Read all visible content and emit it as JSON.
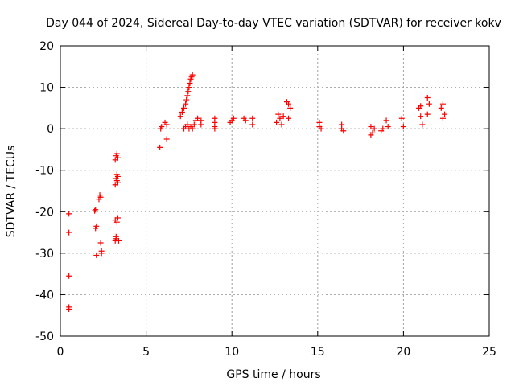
{
  "chart_data": {
    "type": "scatter",
    "title": "Day 044 of 2024, Sidereal Day-to-day VTEC variation (SDTVAR) for receiver kokv",
    "xlabel": "GPS time / hours",
    "ylabel": "SDTVAR / TECUs",
    "xlim": [
      0,
      25
    ],
    "ylim": [
      -50,
      20
    ],
    "grid": true,
    "marker": "plus",
    "color": "#ff0000",
    "x_ticks": [
      "0",
      "5",
      "10",
      "15",
      "20",
      "25"
    ],
    "y_ticks": [
      "-50",
      "-40",
      "-30",
      "-20",
      "-10",
      "0",
      "10",
      "20"
    ],
    "series": [
      {
        "name": "SDTVAR",
        "x": [
          0.5,
          0.5,
          0.5,
          0.5,
          0.5,
          2.0,
          2.05,
          2.1,
          2.3,
          2.35,
          2.4,
          2.05,
          2.1,
          2.25,
          2.35,
          2.4,
          3.2,
          3.25,
          3.3,
          3.35,
          3.2,
          3.25,
          3.3,
          3.35,
          3.2,
          3.25,
          3.3,
          3.35,
          3.2,
          3.25,
          3.3,
          3.35,
          3.4,
          5.8,
          5.85,
          5.9,
          6.1,
          6.2,
          6.2,
          7.0,
          7.1,
          7.2,
          7.3,
          7.35,
          7.4,
          7.45,
          7.5,
          7.55,
          7.6,
          7.65,
          7.7,
          7.2,
          7.3,
          7.4,
          7.5,
          7.6,
          7.7,
          7.8,
          7.9,
          8.0,
          8.2,
          8.2,
          9.0,
          9.0,
          9.0,
          9.0,
          9.9,
          10.0,
          10.1,
          10.7,
          10.8,
          11.2,
          11.2,
          12.6,
          12.7,
          12.8,
          12.9,
          13.0,
          13.2,
          13.3,
          13.4,
          13.3,
          15.1,
          15.1,
          15.2,
          16.4,
          16.4,
          16.5,
          18.1,
          18.2,
          18.3,
          18.1,
          18.7,
          18.8,
          19.0,
          19.1,
          19.9,
          20.0,
          20.9,
          21.0,
          21.1,
          21.0,
          21.4,
          21.5,
          21.4,
          22.2,
          22.3,
          22.4,
          22.3
        ],
        "y": [
          -20.5,
          -25.0,
          -35.5,
          -43.0,
          -43.5,
          -19.8,
          -24.0,
          -30.5,
          -16.0,
          -27.5,
          -30.0,
          -19.5,
          -23.5,
          -17.0,
          -16.5,
          -29.5,
          -27.0,
          -26.5,
          -22.5,
          -21.5,
          -13.5,
          -12.0,
          -11.0,
          -11.5,
          -7.5,
          -6.5,
          -6.0,
          -13.0,
          -22.0,
          -26.0,
          -12.5,
          -7.0,
          -27.0,
          -4.5,
          0.0,
          0.5,
          1.5,
          1.0,
          -2.5,
          3.0,
          4.0,
          5.0,
          6.0,
          7.0,
          8.0,
          9.0,
          10.0,
          11.0,
          12.0,
          12.5,
          13.0,
          0.0,
          0.5,
          1.0,
          0.0,
          0.5,
          0.0,
          1.0,
          2.0,
          2.5,
          2.0,
          1.0,
          2.5,
          1.5,
          0.5,
          0.0,
          1.5,
          2.0,
          2.5,
          2.5,
          2.0,
          2.5,
          1.0,
          1.5,
          3.5,
          2.5,
          1.0,
          3.0,
          6.5,
          6.0,
          5.0,
          2.5,
          1.5,
          0.5,
          0.0,
          1.0,
          0.0,
          -0.5,
          0.5,
          -1.0,
          0.0,
          -1.5,
          -0.5,
          0.0,
          2.0,
          0.5,
          2.5,
          0.5,
          5.0,
          3.0,
          1.0,
          5.5,
          7.5,
          6.0,
          3.5,
          5.0,
          6.0,
          3.5,
          2.5
        ]
      }
    ]
  }
}
